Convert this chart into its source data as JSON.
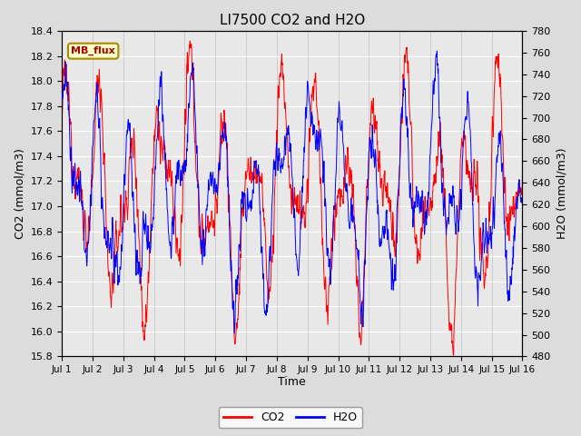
{
  "title": "LI7500 CO2 and H2O",
  "xlabel": "Time",
  "ylabel_left": "CO2 (mmol/m3)",
  "ylabel_right": "H2O (mmol/m3)",
  "co2_ylim": [
    15.8,
    18.4
  ],
  "h2o_ylim": [
    480,
    780
  ],
  "co2_yticks": [
    15.8,
    16.0,
    16.2,
    16.4,
    16.6,
    16.8,
    17.0,
    17.2,
    17.4,
    17.6,
    17.8,
    18.0,
    18.2,
    18.4
  ],
  "h2o_yticks": [
    480,
    500,
    520,
    540,
    560,
    580,
    600,
    620,
    640,
    660,
    680,
    700,
    720,
    740,
    760,
    780
  ],
  "xtick_labels": [
    "Jul 1",
    "Jul 2",
    "Jul 3",
    "Jul 4",
    "Jul 5",
    "Jul 6",
    "Jul 7",
    "Jul 8",
    "Jul 9",
    "Jul 10",
    "Jul 11",
    "Jul 12",
    "Jul 13",
    "Jul 14",
    "Jul 15",
    "Jul 16"
  ],
  "co2_color": "#FF0000",
  "h2o_color": "#0000FF",
  "legend_box_facecolor": "#FFFFCC",
  "legend_box_text": "MB_flux",
  "legend_box_edgecolor": "#AA8800",
  "plot_bg_color": "#E8E8E8",
  "grid_color": "#FFFFFF",
  "n_days": 15,
  "pts_per_day": 96,
  "seed": 12345
}
